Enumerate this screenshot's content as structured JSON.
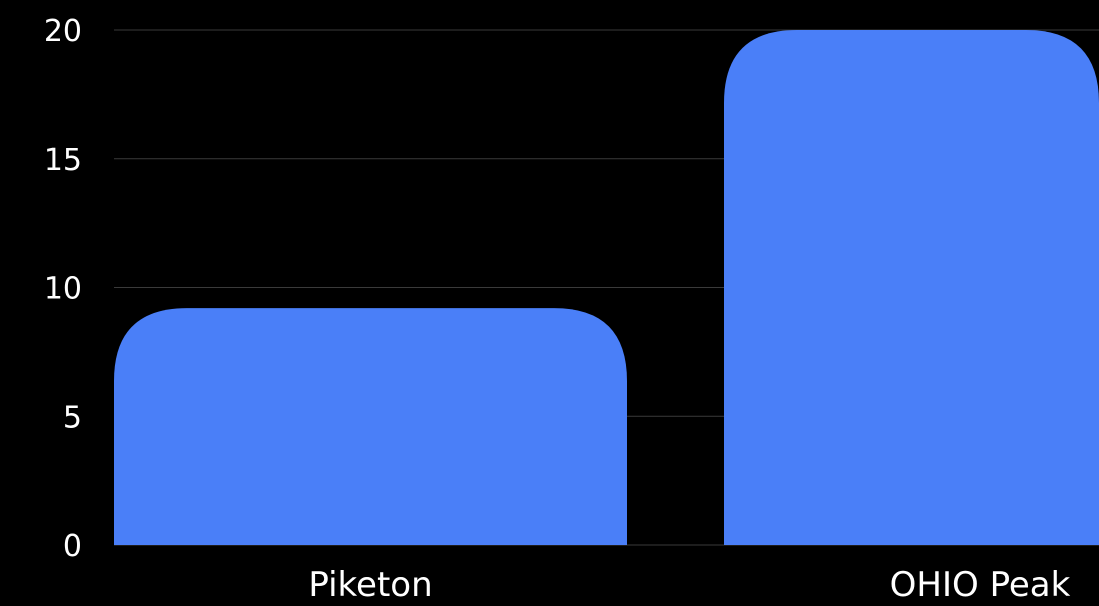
{
  "chart_data": {
    "type": "bar",
    "categories": [
      "Piketon",
      "OHIO Peak"
    ],
    "values": [
      9.2,
      20
    ],
    "ylim": [
      0,
      20
    ],
    "yticks": [
      "0",
      "5",
      "10",
      "15",
      "20"
    ],
    "grid": true,
    "bar_color": "#4a7ff8",
    "background_color": "#000000",
    "text_color": "#ffffff",
    "grid_color": "#3a3a3a"
  }
}
